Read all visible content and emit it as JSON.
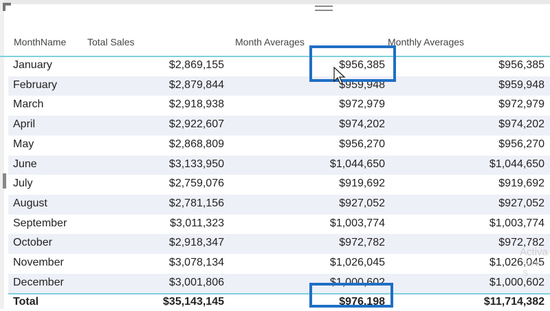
{
  "table": {
    "columns": [
      "MonthName",
      "Total Sales",
      "Month Averages",
      "Monthly Averages"
    ],
    "rows": [
      {
        "month": "January",
        "total_sales": "$2,869,155",
        "month_averages": "$956,385",
        "monthly_averages": "$956,385"
      },
      {
        "month": "February",
        "total_sales": "$2,879,844",
        "month_averages": "$959,948",
        "monthly_averages": "$959,948"
      },
      {
        "month": "March",
        "total_sales": "$2,918,938",
        "month_averages": "$972,979",
        "monthly_averages": "$972,979"
      },
      {
        "month": "April",
        "total_sales": "$2,922,607",
        "month_averages": "$974,202",
        "monthly_averages": "$974,202"
      },
      {
        "month": "May",
        "total_sales": "$2,868,809",
        "month_averages": "$956,270",
        "monthly_averages": "$956,270"
      },
      {
        "month": "June",
        "total_sales": "$3,133,950",
        "month_averages": "$1,044,650",
        "monthly_averages": "$1,044,650"
      },
      {
        "month": "July",
        "total_sales": "$2,759,076",
        "month_averages": "$919,692",
        "monthly_averages": "$919,692"
      },
      {
        "month": "August",
        "total_sales": "$2,781,156",
        "month_averages": "$927,052",
        "monthly_averages": "$927,052"
      },
      {
        "month": "September",
        "total_sales": "$3,011,323",
        "month_averages": "$1,003,774",
        "monthly_averages": "$1,003,774"
      },
      {
        "month": "October",
        "total_sales": "$2,918,347",
        "month_averages": "$972,782",
        "monthly_averages": "$972,782"
      },
      {
        "month": "November",
        "total_sales": "$3,078,134",
        "month_averages": "$1,026,045",
        "monthly_averages": "$1,026,045"
      },
      {
        "month": "December",
        "total_sales": "$3,001,806",
        "month_averages": "$1,000,602",
        "monthly_averages": "$1,000,602"
      }
    ],
    "total": {
      "label": "Total",
      "total_sales": "$35,143,145",
      "month_averages": "$976,198",
      "monthly_averages": "$11,714,382"
    }
  },
  "watermark": {
    "line1": "Activa",
    "line2": "Go to S"
  },
  "colors": {
    "accent_line": "#7fd1dc",
    "highlight_box": "#1f6fc4",
    "alt_row": "#eef0f8"
  }
}
